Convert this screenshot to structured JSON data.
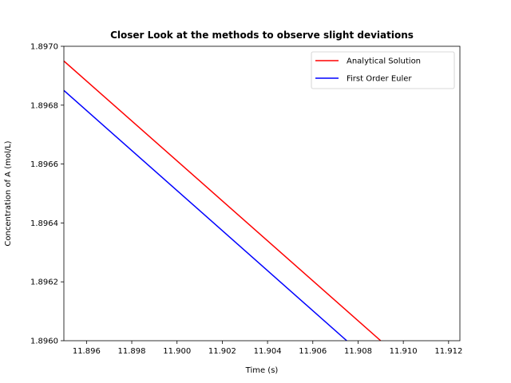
{
  "chart_data": {
    "type": "line",
    "title": "Closer Look at the methods to observe slight deviations",
    "xlabel": "Time (s)",
    "ylabel": "Concentration of A (mol/L)",
    "xlim": [
      11.895,
      11.9125
    ],
    "ylim": [
      1.896,
      1.897
    ],
    "xticks": [
      "11.896",
      "11.898",
      "11.900",
      "11.902",
      "11.904",
      "11.906",
      "11.908",
      "11.910",
      "11.912"
    ],
    "yticks": [
      "1.8960",
      "1.8962",
      "1.8964",
      "1.8966",
      "1.8968",
      "1.8970"
    ],
    "legend_position": "top-right",
    "grid": false,
    "series": [
      {
        "name": "Analytical Solution",
        "color": "#ff0000",
        "x": [
          11.895,
          11.909
        ],
        "y": [
          1.89695,
          1.896
        ]
      },
      {
        "name": "First Order Euler",
        "color": "#0000ff",
        "x": [
          11.895,
          11.9075
        ],
        "y": [
          1.89685,
          1.896
        ]
      }
    ]
  }
}
